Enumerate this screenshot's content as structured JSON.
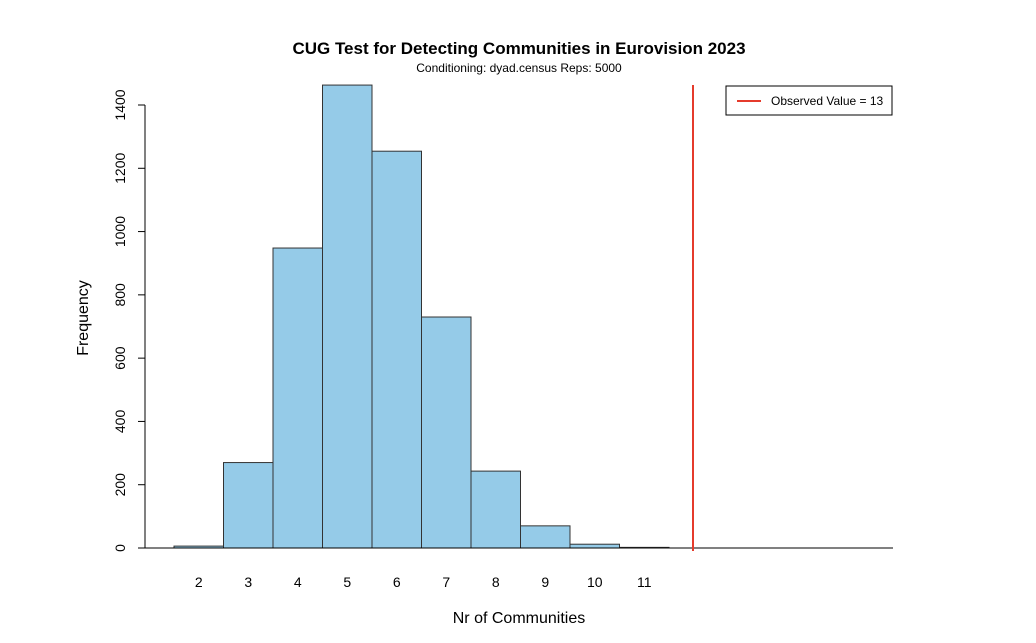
{
  "chart_data": {
    "type": "bar",
    "title": "CUG Test for Detecting Communities in Eurovision 2023",
    "subtitle": "Conditioning: dyad.census Reps: 5000",
    "xlabel": "Nr of Communities",
    "ylabel": "Frequency",
    "categories": [
      "2",
      "3",
      "4",
      "5",
      "6",
      "7",
      "8",
      "9",
      "10",
      "11"
    ],
    "values": [
      6,
      270,
      948,
      1463,
      1254,
      730,
      243,
      70,
      12,
      2
    ],
    "ylim": [
      0,
      1400
    ],
    "yticks": [
      "0",
      "200",
      "400",
      "600",
      "800",
      "1000",
      "1200",
      "1400"
    ],
    "bar_color": "#95CBE8",
    "bar_stroke": "#333333",
    "observed_value": 13,
    "observed_line_color": "#E53B2C",
    "legend": {
      "position": "top-right",
      "entries": [
        {
          "label": "Observed Value = 13",
          "color": "#E53B2C"
        }
      ]
    },
    "grid": false
  }
}
